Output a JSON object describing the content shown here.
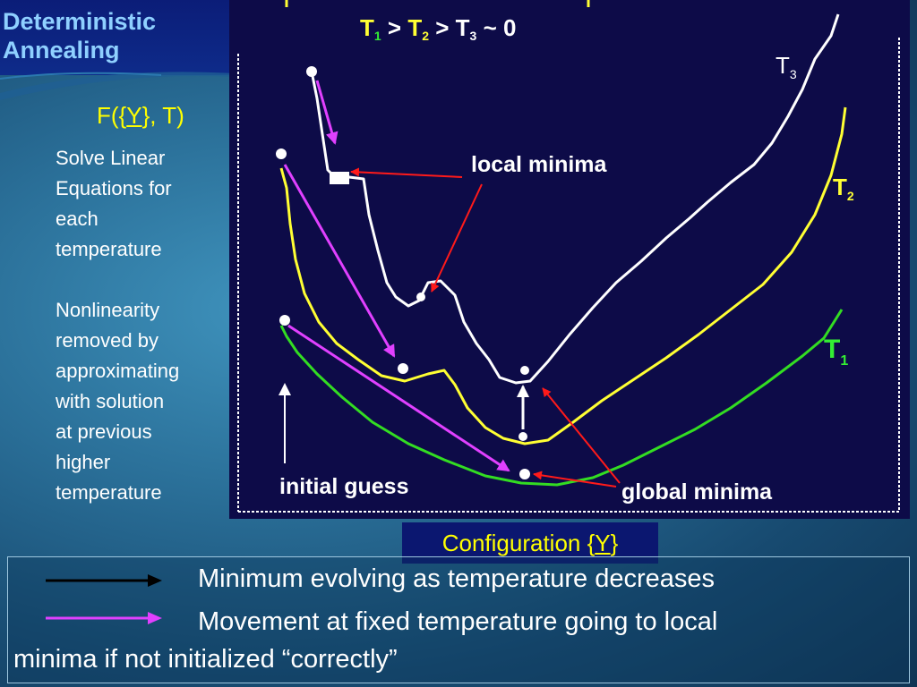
{
  "slide": {
    "title_line1": "Deterministic",
    "title_line2": "Annealing",
    "formula": {
      "prefix": "F({",
      "var": "Y",
      "suffix": "}, T)"
    },
    "note_1": [
      "Solve Linear",
      "Equations for",
      "each",
      "temperature"
    ],
    "note_2": [
      "Nonlinearity",
      "removed by",
      "approximating",
      "with solution",
      "at previous",
      "higher",
      "temperature"
    ]
  },
  "plot": {
    "header": {
      "t1": "T",
      "sub1": "1",
      "gt1": " > ",
      "t2": "T",
      "sub2": "2",
      "gt2": " > ",
      "t3": "T",
      "sub3": "3",
      "tail": " ~ 0"
    },
    "labels": {
      "t3_letter": "T",
      "t3_sub": "3",
      "t2_letter": "T",
      "t2_sub": "2",
      "t1_letter": "T",
      "t1_sub": "1",
      "local_minima": "local minima",
      "global_minima": "global minima",
      "initial_guess": "initial guess"
    },
    "colors": {
      "background": "#0d0b48",
      "t3_curve": "#ffffff",
      "t2_curve": "#ffff33",
      "t1_curve": "#33dd22",
      "red_arrow": "#ff1a1a",
      "magenta_arrow": "#e040ff",
      "header_yellow": "#ffff33",
      "header_green": "#33ee33"
    }
  },
  "config_label": {
    "prefix": "Configuration {",
    "var": "Y",
    "suffix": "}"
  },
  "legend": {
    "item1": "Minimum evolving as temperature decreases",
    "item2_line1": "Movement at fixed temperature going to local",
    "item2_line2": "minima if not initialized “correctly”"
  }
}
